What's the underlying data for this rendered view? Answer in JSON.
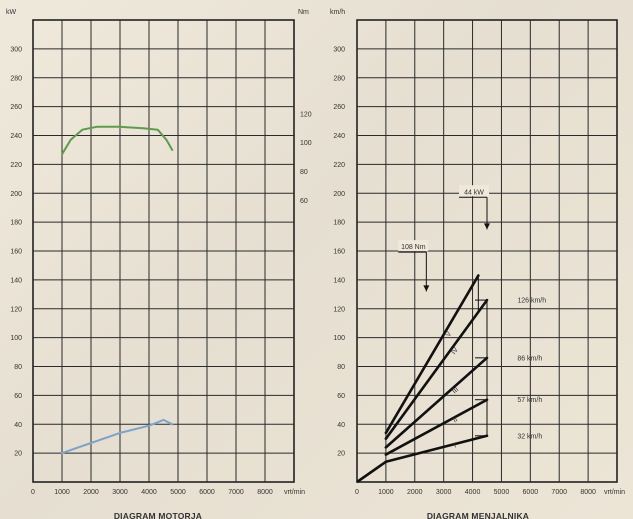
{
  "chart_data": [
    {
      "type": "line",
      "title": "DIAGRAM MOTORJA",
      "x_unit": "vrt/min",
      "x_ticks": [
        "0",
        "1000",
        "2000",
        "3000",
        "4000",
        "5000",
        "6000",
        "7000",
        "8000"
      ],
      "xlim": [
        0,
        9000
      ],
      "y_left_unit": "kW",
      "y_left_ticks": [
        "20",
        "40",
        "60",
        "80",
        "100",
        "120",
        "140",
        "160",
        "180",
        "200",
        "220",
        "240",
        "260",
        "280",
        "300"
      ],
      "ylim_left": [
        0,
        320
      ],
      "y_right_unit": "Nm",
      "y_right_ticks": [
        "60",
        "80",
        "100",
        "120"
      ],
      "grid": true,
      "series": [
        {
          "color": "#5f9b4c",
          "points": [
            [
              1000,
              227
            ],
            [
              1300,
              237
            ],
            [
              1700,
              244
            ],
            [
              2200,
              246
            ],
            [
              3000,
              246
            ],
            [
              3800,
              245
            ],
            [
              4300,
              244
            ],
            [
              4600,
              237
            ],
            [
              4800,
              230
            ]
          ]
        },
        {
          "color": "#7ea3c8",
          "points": [
            [
              1000,
              20
            ],
            [
              2000,
              27
            ],
            [
              3000,
              34
            ],
            [
              4000,
              39
            ],
            [
              4500,
              43
            ],
            [
              4800,
              40
            ]
          ]
        }
      ]
    },
    {
      "type": "line",
      "title": "DIAGRAM MENJALNIKA",
      "x_unit": "vrt/min",
      "x_ticks": [
        "0",
        "1000",
        "2000",
        "3000",
        "4000",
        "5000",
        "6000",
        "7000",
        "8000"
      ],
      "xlim": [
        0,
        9000
      ],
      "y_unit": "km/h",
      "y_ticks": [
        "20",
        "40",
        "60",
        "80",
        "100",
        "120",
        "140",
        "160",
        "180",
        "200",
        "220",
        "240",
        "260",
        "280",
        "300"
      ],
      "ylim": [
        0,
        320
      ],
      "grid": true,
      "series": [
        {
          "gear_label": "I",
          "points": [
            [
              1000,
              14
            ],
            [
              4500,
              32
            ]
          ],
          "line_end_label": "32 km/h"
        },
        {
          "gear_label": "II",
          "points": [
            [
              1000,
              19
            ],
            [
              4500,
              57
            ]
          ],
          "line_end_label": "57 km/h"
        },
        {
          "gear_label": "III",
          "points": [
            [
              1000,
              24
            ],
            [
              4500,
              86
            ]
          ],
          "line_end_label": "86 km/h"
        },
        {
          "gear_label": "IV",
          "points": [
            [
              1000,
              30
            ],
            [
              4500,
              126
            ]
          ],
          "line_end_label": "126 km/h"
        },
        {
          "gear_label": "V",
          "points": [
            [
              1000,
              34
            ],
            [
              4200,
              143
            ]
          ]
        }
      ],
      "baseline": {
        "points": [
          [
            0,
            0
          ],
          [
            1000,
            14
          ]
        ]
      },
      "annotations": [
        {
          "text": "108 Nm",
          "x": 2400,
          "y": 162,
          "arrow_to": [
            2400,
            132
          ]
        },
        {
          "text": "44 kW",
          "x": 4500,
          "y": 200,
          "arrow_to": [
            4500,
            175
          ]
        }
      ]
    }
  ]
}
